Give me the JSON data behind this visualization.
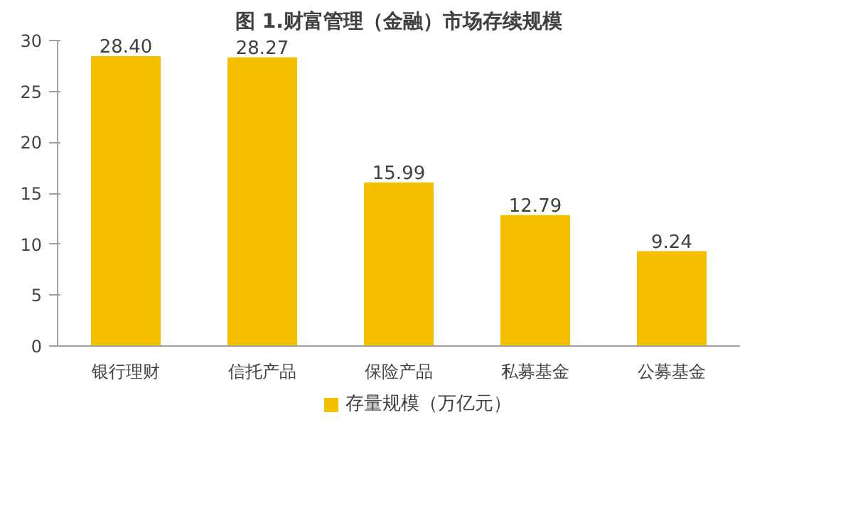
{
  "chart_data": {
    "type": "bar",
    "title": "图 1.财富管理（金融）市场存续规模",
    "categories": [
      "银行理财",
      "信托产品",
      "保险产品",
      "私募基金",
      "公募基金"
    ],
    "series": [
      {
        "name": "存量规模（万亿元）",
        "color": "#f5c000",
        "values": [
          28.4,
          28.27,
          15.99,
          12.79,
          9.24
        ]
      }
    ],
    "value_labels": [
      "28.40",
      "28.27",
      "15.99",
      "12.79",
      "9.24"
    ],
    "ylim": [
      0,
      30
    ],
    "yticks": [
      0,
      5,
      10,
      15,
      20,
      25,
      30
    ],
    "grid": false,
    "legend": "bottom"
  }
}
